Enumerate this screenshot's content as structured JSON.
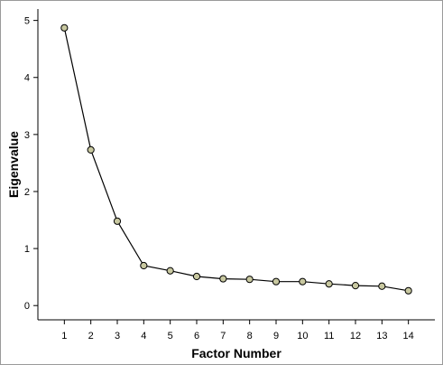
{
  "chart_data": {
    "type": "line",
    "xlabel": "Factor Number",
    "ylabel": "Eigenvalue",
    "x": [
      1,
      2,
      3,
      4,
      5,
      6,
      7,
      8,
      9,
      10,
      11,
      12,
      13,
      14
    ],
    "values": [
      4.87,
      2.73,
      1.48,
      0.7,
      0.61,
      0.51,
      0.47,
      0.46,
      0.42,
      0.42,
      0.38,
      0.35,
      0.34,
      0.26
    ],
    "x_ticks": [
      "1",
      "2",
      "3",
      "4",
      "5",
      "6",
      "7",
      "8",
      "9",
      "10",
      "11",
      "12",
      "13",
      "14"
    ],
    "y_ticks": [
      "0",
      "1",
      "2",
      "3",
      "4",
      "5"
    ],
    "xlim": [
      0,
      15
    ],
    "ylim": [
      -0.25,
      5.2
    ],
    "grid": false,
    "line_color": "#000000",
    "marker_fill": "#c8c8a0",
    "marker_stroke": "#000000"
  }
}
